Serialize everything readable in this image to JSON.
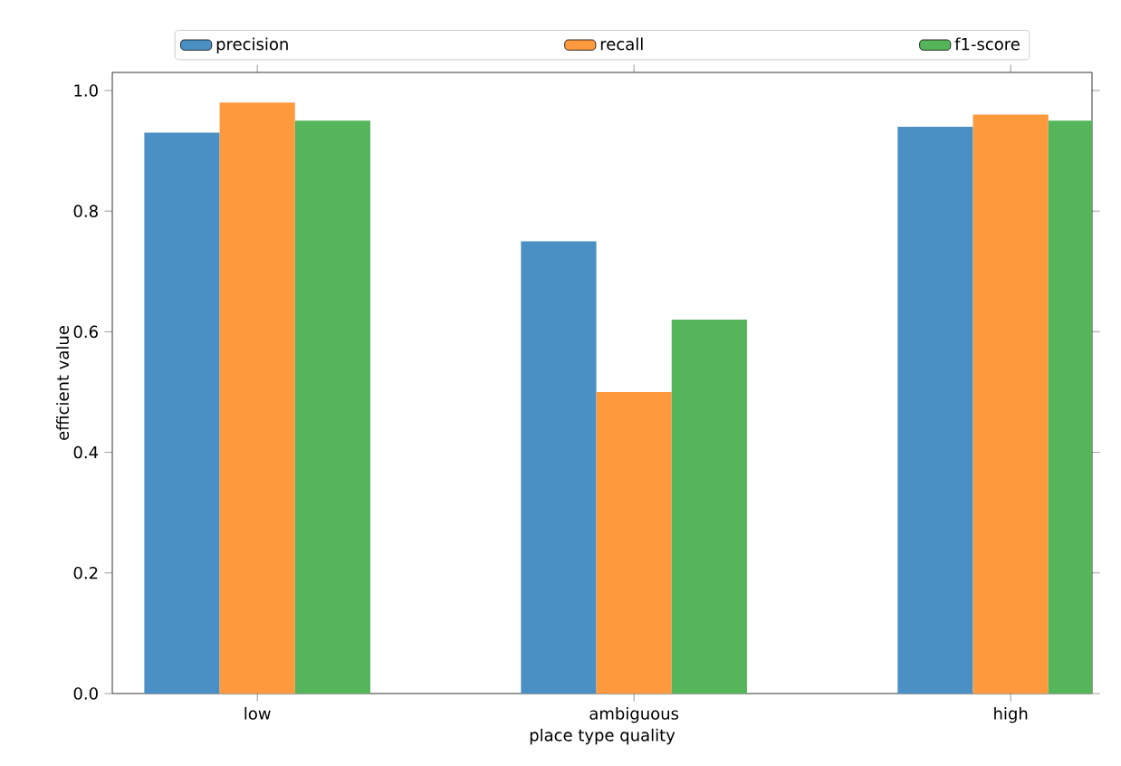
{
  "chart_data": {
    "type": "bar",
    "xlabel": "place type quality",
    "ylabel": "efficient value",
    "categories": [
      "low",
      "ambiguous",
      "high"
    ],
    "series": [
      {
        "name": "precision",
        "color": "#4a90c4",
        "values": [
          0.93,
          0.75,
          0.94
        ]
      },
      {
        "name": "recall",
        "color": "#ff993e",
        "values": [
          0.98,
          0.5,
          0.96
        ]
      },
      {
        "name": "f1-score",
        "color": "#55b55a",
        "values": [
          0.95,
          0.62,
          0.95
        ]
      }
    ],
    "ylim": [
      0,
      1.03
    ],
    "yticks": [
      {
        "value": 0,
        "label": "0.0"
      },
      {
        "value": 0.2,
        "label": "0.2"
      },
      {
        "value": 0.4,
        "label": "0.4"
      },
      {
        "value": 0.6,
        "label": "0.6"
      },
      {
        "value": 0.8,
        "label": "0.8"
      },
      {
        "value": 1.0,
        "label": "1.0"
      }
    ],
    "grid": false,
    "legend": "top"
  }
}
